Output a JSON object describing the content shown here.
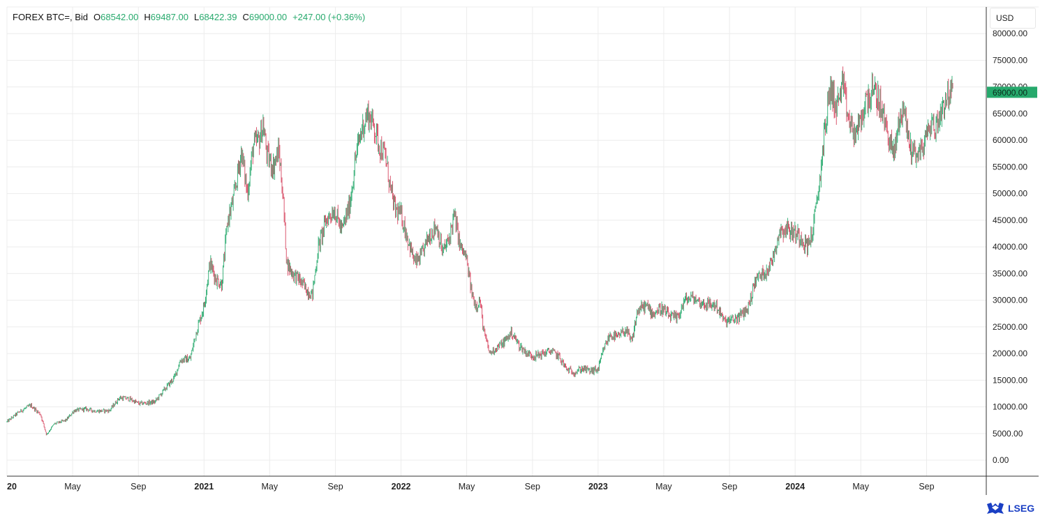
{
  "header": {
    "symbol": "FOREX BTC=, Bid",
    "open_label": "O",
    "open_value": "68542.00",
    "high_label": "H",
    "high_value": "69487.00",
    "low_label": "L",
    "low_value": "68422.39",
    "close_label": "C",
    "close_value": "69000.00",
    "change": "+247.00 (+0.36%)"
  },
  "currency": "USD",
  "last_price_label": "69000.00",
  "brand": "LSEG",
  "colors": {
    "up": "#26a96c",
    "down": "#d6455f",
    "grid": "#ececec",
    "axis": "#555555",
    "badge": "#26a96c"
  },
  "chart_data": {
    "type": "candlestick",
    "ylim": [
      -3000,
      85000
    ],
    "y_ticks": [
      "0.00",
      "5000.00",
      "10000.00",
      "15000.00",
      "20000.00",
      "25000.00",
      "30000.00",
      "35000.00",
      "40000.00",
      "45000.00",
      "50000.00",
      "55000.00",
      "60000.00",
      "65000.00",
      "70000.00",
      "75000.00",
      "80000.00"
    ],
    "x_ticks": [
      {
        "label": "20",
        "bold": true,
        "t": 0.0
      },
      {
        "label": "May",
        "bold": false,
        "t": 0.333
      },
      {
        "label": "Sep",
        "bold": false,
        "t": 0.667
      },
      {
        "label": "2021",
        "bold": true,
        "t": 1.0
      },
      {
        "label": "May",
        "bold": false,
        "t": 1.333
      },
      {
        "label": "Sep",
        "bold": false,
        "t": 1.667
      },
      {
        "label": "2022",
        "bold": true,
        "t": 2.0
      },
      {
        "label": "May",
        "bold": false,
        "t": 2.333
      },
      {
        "label": "Sep",
        "bold": false,
        "t": 2.667
      },
      {
        "label": "2023",
        "bold": true,
        "t": 3.0
      },
      {
        "label": "May",
        "bold": false,
        "t": 3.333
      },
      {
        "label": "Sep",
        "bold": false,
        "t": 3.667
      },
      {
        "label": "2024",
        "bold": true,
        "t": 4.0
      },
      {
        "label": "May",
        "bold": false,
        "t": 4.333
      },
      {
        "label": "Sep",
        "bold": false,
        "t": 4.667
      }
    ],
    "price_path": [
      [
        0.0,
        7200
      ],
      [
        0.06,
        9000
      ],
      [
        0.12,
        10300
      ],
      [
        0.17,
        8600
      ],
      [
        0.2,
        4800
      ],
      [
        0.24,
        6800
      ],
      [
        0.3,
        7500
      ],
      [
        0.34,
        9300
      ],
      [
        0.4,
        9600
      ],
      [
        0.45,
        9200
      ],
      [
        0.52,
        9300
      ],
      [
        0.57,
        11700
      ],
      [
        0.62,
        11500
      ],
      [
        0.67,
        10600
      ],
      [
        0.75,
        10900
      ],
      [
        0.8,
        13300
      ],
      [
        0.85,
        15500
      ],
      [
        0.88,
        18800
      ],
      [
        0.93,
        19000
      ],
      [
        0.96,
        24000
      ],
      [
        1.0,
        29000
      ],
      [
        1.03,
        37000
      ],
      [
        1.06,
        34000
      ],
      [
        1.09,
        33000
      ],
      [
        1.12,
        45000
      ],
      [
        1.15,
        49000
      ],
      [
        1.19,
        58000
      ],
      [
        1.22,
        50000
      ],
      [
        1.25,
        59000
      ],
      [
        1.28,
        60000
      ],
      [
        1.3,
        63000
      ],
      [
        1.32,
        57000
      ],
      [
        1.35,
        55000
      ],
      [
        1.38,
        58000
      ],
      [
        1.4,
        50000
      ],
      [
        1.42,
        37000
      ],
      [
        1.45,
        35000
      ],
      [
        1.48,
        34000
      ],
      [
        1.52,
        32000
      ],
      [
        1.55,
        31000
      ],
      [
        1.58,
        40000
      ],
      [
        1.62,
        45000
      ],
      [
        1.66,
        47000
      ],
      [
        1.7,
        43000
      ],
      [
        1.74,
        48000
      ],
      [
        1.77,
        57000
      ],
      [
        1.8,
        62000
      ],
      [
        1.83,
        65000
      ],
      [
        1.86,
        63000
      ],
      [
        1.89,
        59000
      ],
      [
        1.92,
        57000
      ],
      [
        1.95,
        50000
      ],
      [
        1.97,
        47000
      ],
      [
        2.0,
        46000
      ],
      [
        2.03,
        42000
      ],
      [
        2.07,
        37000
      ],
      [
        2.1,
        38000
      ],
      [
        2.14,
        42000
      ],
      [
        2.18,
        44000
      ],
      [
        2.21,
        39000
      ],
      [
        2.24,
        41000
      ],
      [
        2.27,
        46000
      ],
      [
        2.3,
        40000
      ],
      [
        2.33,
        38000
      ],
      [
        2.36,
        31000
      ],
      [
        2.38,
        29000
      ],
      [
        2.4,
        30000
      ],
      [
        2.42,
        24000
      ],
      [
        2.45,
        20000
      ],
      [
        2.48,
        21000
      ],
      [
        2.52,
        22000
      ],
      [
        2.56,
        24000
      ],
      [
        2.6,
        21500
      ],
      [
        2.64,
        20000
      ],
      [
        2.68,
        19500
      ],
      [
        2.72,
        20000
      ],
      [
        2.76,
        20500
      ],
      [
        2.8,
        19500
      ],
      [
        2.84,
        17000
      ],
      [
        2.88,
        16500
      ],
      [
        2.92,
        17200
      ],
      [
        2.96,
        16700
      ],
      [
        3.0,
        17000
      ],
      [
        3.03,
        21000
      ],
      [
        3.06,
        23500
      ],
      [
        3.1,
        23000
      ],
      [
        3.14,
        24500
      ],
      [
        3.17,
        22000
      ],
      [
        3.2,
        28000
      ],
      [
        3.24,
        29000
      ],
      [
        3.28,
        27500
      ],
      [
        3.32,
        28500
      ],
      [
        3.36,
        27000
      ],
      [
        3.4,
        26500
      ],
      [
        3.44,
        30000
      ],
      [
        3.48,
        30500
      ],
      [
        3.52,
        29500
      ],
      [
        3.56,
        29200
      ],
      [
        3.6,
        29000
      ],
      [
        3.64,
        26000
      ],
      [
        3.68,
        26200
      ],
      [
        3.72,
        27000
      ],
      [
        3.76,
        28500
      ],
      [
        3.8,
        34000
      ],
      [
        3.84,
        35000
      ],
      [
        3.88,
        37000
      ],
      [
        3.92,
        43000
      ],
      [
        3.96,
        43500
      ],
      [
        4.0,
        42500
      ],
      [
        4.03,
        42000
      ],
      [
        4.06,
        40000
      ],
      [
        4.09,
        43000
      ],
      [
        4.12,
        51000
      ],
      [
        4.15,
        62000
      ],
      [
        4.18,
        70000
      ],
      [
        4.21,
        66000
      ],
      [
        4.24,
        70500
      ],
      [
        4.27,
        64000
      ],
      [
        4.3,
        61000
      ],
      [
        4.33,
        63000
      ],
      [
        4.36,
        67500
      ],
      [
        4.39,
        69000
      ],
      [
        4.42,
        68000
      ],
      [
        4.45,
        64000
      ],
      [
        4.48,
        60000
      ],
      [
        4.5,
        57000
      ],
      [
        4.53,
        64000
      ],
      [
        4.55,
        66500
      ],
      [
        4.58,
        59000
      ],
      [
        4.6,
        58000
      ],
      [
        4.63,
        57500
      ],
      [
        4.66,
        60000
      ],
      [
        4.69,
        63500
      ],
      [
        4.71,
        62000
      ],
      [
        4.74,
        65500
      ],
      [
        4.77,
        68500
      ],
      [
        4.8,
        69000
      ]
    ],
    "last_price": 69000
  }
}
